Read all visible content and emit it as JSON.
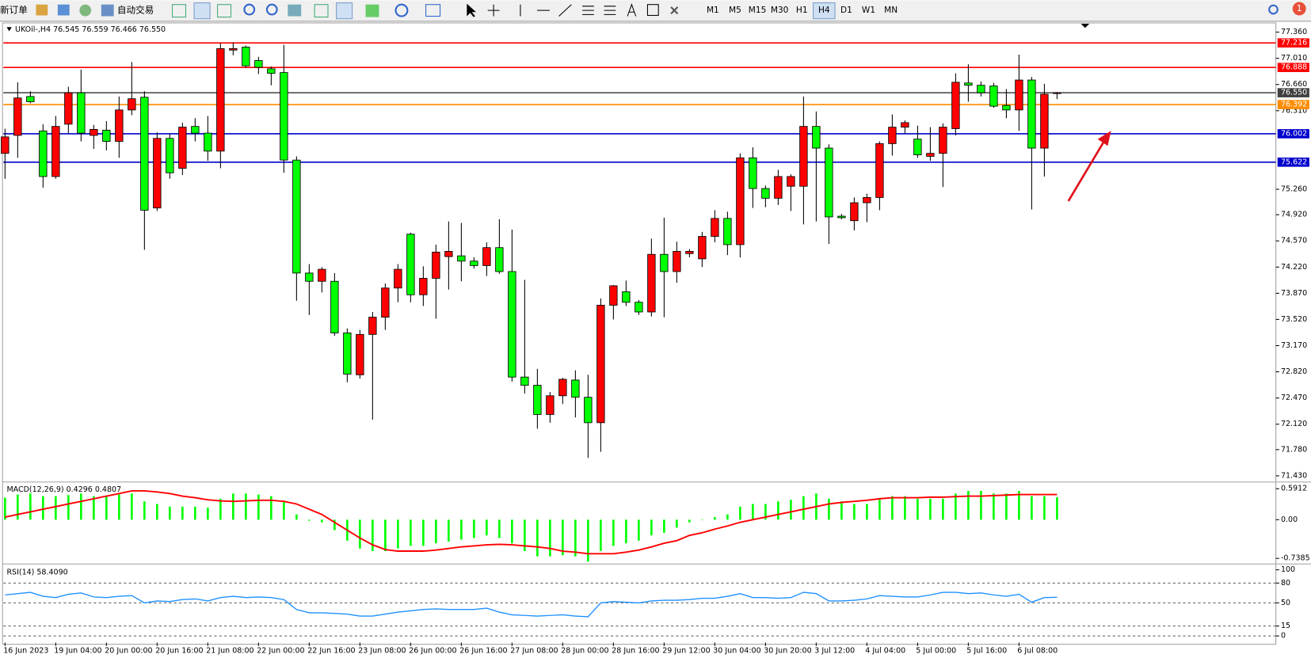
{
  "toolbar": {
    "new_order": "新订单",
    "auto_trading": "自动交易",
    "timeframes": [
      "M1",
      "M5",
      "M15",
      "M30",
      "H1",
      "H4",
      "D1",
      "W1",
      "MN"
    ],
    "notifications": "1"
  },
  "chart_data": [
    {
      "type": "candlestick",
      "title": "UKOil-,H4  76.545 76.559 76.466 76.550",
      "categories": [
        "16 Jun 2023",
        null,
        null,
        null,
        "19 Jun 04:00",
        null,
        null,
        null,
        "20 Jun 00:00",
        null,
        null,
        null,
        "20 Jun 16:00",
        null,
        null,
        null,
        "21 Jun 08:00",
        null,
        null,
        null,
        "22 Jun 00:00",
        null,
        null,
        null,
        "22 Jun 16:00",
        null,
        null,
        null,
        "23 Jun 08:00",
        null,
        null,
        null,
        "26 Jun 00:00",
        null,
        null,
        null,
        "26 Jun 16:00",
        null,
        null,
        null,
        "27 Jun 08:00",
        null,
        null,
        null,
        "28 Jun 00:00",
        null,
        null,
        null,
        "28 Jun 16:00",
        null,
        null,
        null,
        "29 Jun 12:00",
        null,
        null,
        null,
        "30 Jun 04:00",
        null,
        null,
        null,
        "30 Jun 20:00",
        null,
        null,
        null,
        "3 Jul 12:00",
        null,
        null,
        null,
        "4 Jul 04:00",
        null,
        null,
        null,
        "5 Jul 00:00",
        null,
        null,
        null,
        "5 Jul 16:00",
        null,
        null,
        null,
        "6 Jul 08:00",
        null,
        null,
        null
      ],
      "open": [
        75.74,
        75.98,
        76.5,
        76.04,
        75.43,
        76.13,
        76.55,
        75.98,
        76.05,
        75.9,
        76.32,
        76.49,
        75.01,
        75.94,
        75.54,
        76.1,
        76.01,
        75.77,
        77.12,
        77.16,
        76.98,
        76.87,
        76.82,
        75.65,
        74.14,
        74.03,
        74.03,
        73.34,
        72.78,
        73.32,
        73.55,
        73.94,
        74.66,
        73.85,
        74.07,
        74.36,
        74.37,
        74.3,
        74.24,
        74.48,
        74.16,
        72.75,
        72.64,
        72.25,
        72.5,
        72.71,
        72.48,
        72.14,
        73.71,
        73.89,
        73.75,
        73.62,
        74.39,
        74.16,
        74.4,
        74.33,
        74.63,
        74.87,
        74.52,
        75.68,
        75.27,
        75.14,
        75.3,
        75.3,
        76.1,
        75.81,
        74.9,
        74.84,
        75.08,
        75.15,
        75.87,
        76.09,
        75.93,
        75.7,
        75.74,
        76.07,
        76.68,
        76.65,
        76.64,
        76.38,
        76.32,
        76.72,
        75.81,
        76.545
      ],
      "high": [
        76.07,
        76.69,
        76.57,
        76.13,
        76.24,
        76.63,
        76.86,
        76.12,
        76.17,
        76.5,
        76.96,
        76.57,
        76.02,
        76.0,
        76.15,
        76.21,
        76.24,
        77.21,
        77.22,
        77.18,
        77.03,
        76.9,
        77.19,
        75.7,
        74.26,
        74.22,
        74.14,
        73.4,
        73.38,
        73.62,
        74.0,
        74.26,
        74.68,
        74.23,
        74.52,
        74.83,
        74.81,
        74.35,
        74.55,
        74.86,
        74.72,
        74.05,
        72.86,
        72.55,
        72.74,
        72.84,
        72.78,
        73.8,
        73.98,
        74.04,
        73.78,
        74.6,
        74.88,
        74.56,
        74.46,
        74.69,
        74.98,
        74.96,
        75.74,
        75.82,
        75.31,
        75.52,
        75.46,
        76.5,
        76.3,
        75.86,
        74.93,
        75.15,
        75.2,
        75.9,
        76.26,
        76.18,
        76.11,
        76.09,
        76.14,
        76.81,
        76.93,
        76.7,
        76.68,
        76.6,
        77.06,
        76.76,
        76.67,
        76.559
      ],
      "low": [
        75.4,
        75.68,
        76.41,
        75.28,
        75.4,
        76.01,
        75.9,
        75.8,
        75.78,
        75.68,
        76.25,
        74.45,
        74.97,
        75.4,
        75.45,
        75.9,
        75.64,
        75.54,
        77.05,
        76.88,
        76.8,
        76.65,
        75.48,
        73.77,
        73.58,
        73.88,
        73.3,
        72.68,
        72.73,
        72.18,
        73.38,
        73.75,
        73.75,
        73.7,
        73.53,
        73.92,
        74.03,
        74.2,
        74.1,
        74.13,
        72.69,
        72.53,
        72.06,
        72.14,
        72.39,
        72.21,
        71.67,
        71.75,
        73.52,
        73.7,
        73.58,
        73.56,
        73.55,
        74.01,
        74.35,
        74.22,
        74.55,
        74.38,
        74.35,
        75.01,
        75.02,
        75.05,
        74.97,
        74.79,
        74.83,
        74.53,
        74.86,
        74.71,
        74.82,
        74.98,
        75.71,
        76.01,
        75.68,
        75.64,
        75.29,
        75.98,
        76.43,
        76.5,
        76.35,
        76.21,
        76.04,
        74.99,
        75.43,
        76.466
      ],
      "close": [
        75.96,
        76.48,
        76.43,
        75.43,
        76.1,
        76.55,
        76.01,
        76.06,
        75.9,
        76.32,
        76.47,
        74.98,
        75.94,
        75.48,
        76.09,
        76.01,
        75.77,
        77.14,
        77.14,
        76.91,
        76.89,
        76.81,
        75.65,
        74.14,
        74.03,
        74.19,
        73.34,
        72.79,
        73.32,
        73.55,
        73.94,
        74.19,
        73.85,
        74.07,
        74.42,
        74.43,
        74.3,
        74.24,
        74.48,
        74.16,
        72.75,
        72.64,
        72.25,
        72.5,
        72.72,
        72.48,
        72.14,
        73.71,
        73.97,
        73.75,
        73.62,
        74.39,
        74.16,
        74.43,
        74.43,
        74.63,
        74.87,
        74.52,
        75.68,
        75.27,
        75.14,
        75.43,
        75.43,
        76.1,
        75.81,
        74.89,
        74.88,
        75.08,
        75.15,
        75.87,
        76.09,
        76.15,
        75.72,
        75.74,
        76.09,
        76.69,
        76.65,
        76.55,
        76.37,
        76.32,
        76.72,
        75.81,
        76.53,
        76.55
      ],
      "up_color": "#ff0000",
      "down_color": "#00ff00",
      "ylim": [
        71.358,
        77.472
      ],
      "yticks": [
        {
          "value": 77.36,
          "label": "77.360"
        },
        {
          "value": 77.01,
          "label": "77.010"
        },
        {
          "value": 76.66,
          "label": "76.660"
        },
        {
          "value": 76.31,
          "label": "76.310"
        },
        {
          "value": 75.26,
          "label": "75.260"
        },
        {
          "value": 74.92,
          "label": "74.920"
        },
        {
          "value": 74.57,
          "label": "74.570"
        },
        {
          "value": 74.22,
          "label": "74.220"
        },
        {
          "value": 73.87,
          "label": "73.870"
        },
        {
          "value": 73.52,
          "label": "73.520"
        },
        {
          "value": 73.17,
          "label": "73.170"
        },
        {
          "value": 72.82,
          "label": "72.820"
        },
        {
          "value": 72.47,
          "label": "72.470"
        },
        {
          "value": 72.12,
          "label": "72.120"
        },
        {
          "value": 71.78,
          "label": "71.780"
        },
        {
          "value": 71.43,
          "label": "71.430"
        }
      ],
      "levels": [
        {
          "value": 77.216,
          "color": "#ff0000"
        },
        {
          "value": 76.888,
          "color": "#ff0000"
        },
        {
          "value": 76.55,
          "label": "76.550",
          "color": "#404040"
        },
        {
          "value": 76.392,
          "color": "#ff8c00"
        },
        {
          "value": 76.002,
          "color": "#0000cd"
        },
        {
          "value": 75.622,
          "color": "#0000cd"
        }
      ]
    },
    {
      "type": "macd",
      "title": "MACD(12,26,9) 0.4296 0.4807",
      "bars": [
        0.42,
        0.48,
        0.5,
        0.45,
        0.45,
        0.47,
        0.5,
        0.45,
        0.45,
        0.48,
        0.5,
        0.35,
        0.3,
        0.25,
        0.25,
        0.25,
        0.23,
        0.4,
        0.5,
        0.5,
        0.48,
        0.45,
        0.35,
        0.1,
        -0.02,
        -0.05,
        -0.2,
        -0.4,
        -0.55,
        -0.6,
        -0.6,
        -0.55,
        -0.5,
        -0.5,
        -0.45,
        -0.42,
        -0.38,
        -0.35,
        -0.3,
        -0.35,
        -0.45,
        -0.6,
        -0.7,
        -0.7,
        -0.68,
        -0.7,
        -0.8,
        -0.6,
        -0.5,
        -0.45,
        -0.4,
        -0.3,
        -0.25,
        -0.15,
        -0.05,
        0.0,
        0.05,
        0.1,
        0.25,
        0.3,
        0.3,
        0.35,
        0.38,
        0.45,
        0.5,
        0.4,
        0.35,
        0.3,
        0.3,
        0.4,
        0.45,
        0.45,
        0.4,
        0.4,
        0.4,
        0.5,
        0.55,
        0.55,
        0.5,
        0.5,
        0.55,
        0.45,
        0.45,
        0.4296
      ],
      "line": [
        0.05,
        0.1,
        0.15,
        0.2,
        0.25,
        0.3,
        0.35,
        0.4,
        0.45,
        0.5,
        0.55,
        0.55,
        0.53,
        0.5,
        0.45,
        0.42,
        0.38,
        0.36,
        0.35,
        0.36,
        0.37,
        0.37,
        0.35,
        0.3,
        0.2,
        0.1,
        -0.05,
        -0.2,
        -0.35,
        -0.48,
        -0.57,
        -0.6,
        -0.6,
        -0.6,
        -0.58,
        -0.55,
        -0.52,
        -0.5,
        -0.48,
        -0.47,
        -0.48,
        -0.5,
        -0.52,
        -0.55,
        -0.6,
        -0.62,
        -0.65,
        -0.65,
        -0.65,
        -0.62,
        -0.58,
        -0.52,
        -0.45,
        -0.4,
        -0.3,
        -0.25,
        -0.18,
        -0.12,
        -0.05,
        0.0,
        0.05,
        0.1,
        0.15,
        0.2,
        0.25,
        0.3,
        0.33,
        0.35,
        0.37,
        0.4,
        0.42,
        0.42,
        0.42,
        0.43,
        0.43,
        0.44,
        0.45,
        0.45,
        0.46,
        0.47,
        0.48,
        0.48,
        0.48,
        0.4807
      ],
      "bar_color": "#00ff00",
      "line_color": "#ff0000",
      "ylim": [
        -0.83,
        0.687
      ],
      "yticks": [
        0.5912,
        {
          "value": 0,
          "label": "0.00"
        },
        -0.7385
      ]
    },
    {
      "type": "rsi",
      "title": "RSI(14) 58.4090",
      "values": [
        62,
        64,
        66,
        60,
        58,
        63,
        65,
        59,
        58,
        60,
        61,
        50,
        53,
        52,
        55,
        56,
        53,
        58,
        60,
        58,
        59,
        58,
        55,
        40,
        35,
        35,
        34,
        33,
        30,
        30,
        33,
        36,
        38,
        40,
        41,
        40,
        40,
        40,
        42,
        36,
        32,
        31,
        30,
        31,
        32,
        30,
        29,
        50,
        52,
        51,
        50,
        53,
        54,
        54,
        55,
        57,
        57,
        60,
        64,
        58,
        58,
        57,
        58,
        66,
        64,
        53,
        53,
        54,
        56,
        61,
        60,
        59,
        59,
        62,
        66,
        66,
        64,
        65,
        62,
        60,
        63,
        51,
        58,
        58.409
      ],
      "color": "#1e90ff",
      "ylim": [
        -10.1,
        106.3
      ],
      "yticks": [
        100,
        80,
        50,
        15,
        0
      ]
    }
  ]
}
